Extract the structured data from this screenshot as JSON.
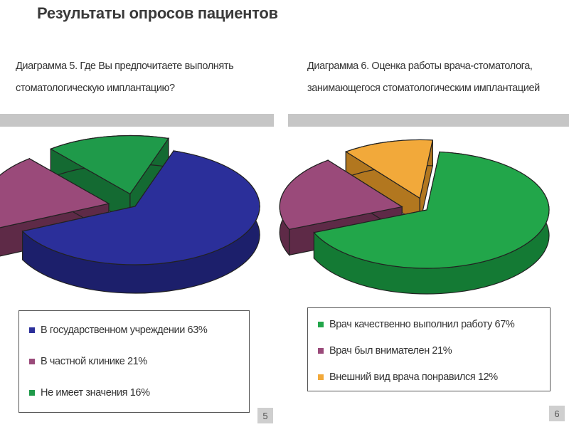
{
  "page_title": "Результаты опросов пациентов",
  "charts": [
    {
      "title_lines": [
        "Диаграмма 5. Где Вы предпочитаете выполнять",
        "стоматологическую имплантацию?"
      ],
      "page_number": "5"
    },
    {
      "title_lines": [
        "Диаграмма 6. Оценка работы врача-стоматолога,",
        "занимающегося стоматологическим имплантацией"
      ],
      "page_number": "6"
    }
  ],
  "chart_data": [
    {
      "type": "pie",
      "title": "Диаграмма 5. Где Вы предпочитаете выполнять стоматологическую имплантацию?",
      "categories": [
        "В государственном учреждении",
        "В частной клинике",
        "Не имеет значения"
      ],
      "values": [
        63,
        21,
        16
      ],
      "labels": [
        "В государственном учреждении 63%",
        "В частной клинике 21%",
        "Не имеет значения 16%"
      ],
      "colors": [
        "#2b2f9a",
        "#9a4a7a",
        "#1f9a4a"
      ],
      "side_colors": [
        "#1c1f6b",
        "#5e2a47",
        "#146a32"
      ],
      "exploded": [
        false,
        true,
        true
      ],
      "legend_position": "bottom"
    },
    {
      "type": "pie",
      "title": "Диаграмма 6. Оценка работы врача-стоматолога, занимающегося стоматологическим имплантацией",
      "categories": [
        "Врач качественно выполнил работу",
        "Врач был внимателен",
        "Внешний вид врача понравился"
      ],
      "values": [
        67,
        21,
        12
      ],
      "labels": [
        "Врач качественно выполнил работу 67%",
        "Врач был внимателен 21%",
        "Внешний вид врача понравился 12%"
      ],
      "colors": [
        "#22a64a",
        "#9a4a7a",
        "#f2a93a"
      ],
      "side_colors": [
        "#147a34",
        "#5e2a47",
        "#b2771f"
      ],
      "exploded": [
        false,
        true,
        true
      ],
      "legend_position": "bottom"
    }
  ]
}
